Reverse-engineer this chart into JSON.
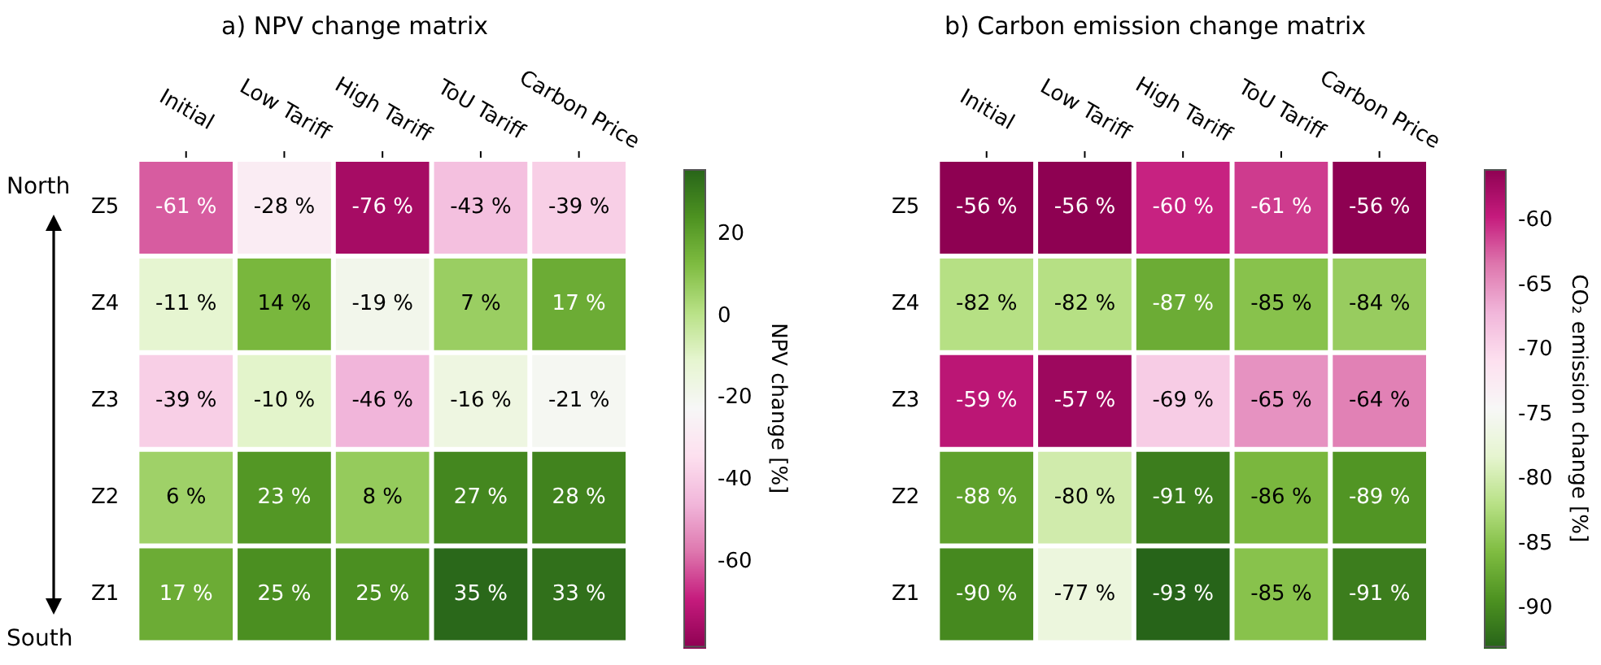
{
  "chart_data": [
    {
      "type": "heatmap",
      "title": "a) NPV change matrix",
      "clabel": "NPV change [%]",
      "categories": [
        "Initial",
        "Low Tariff",
        "High Tariff",
        "ToU Tariff",
        "Carbon Price"
      ],
      "y_categories": [
        "Z5",
        "Z4",
        "Z3",
        "Z2",
        "Z1"
      ],
      "cells": [
        [
          -61,
          -28,
          -76,
          -43,
          -39
        ],
        [
          -11,
          14,
          -19,
          7,
          17
        ],
        [
          -39,
          -10,
          -46,
          -16,
          -21
        ],
        [
          6,
          23,
          8,
          27,
          28
        ],
        [
          17,
          25,
          25,
          35,
          33
        ]
      ],
      "cell_labels": [
        [
          "-61 %",
          "-28 %",
          "-76 %",
          "-43 %",
          "-39 %"
        ],
        [
          "-11 %",
          "14 %",
          "-19 %",
          "7 %",
          "17 %"
        ],
        [
          "-39 %",
          "-10 %",
          "-46 %",
          "-16 %",
          "-21 %"
        ],
        [
          "6 %",
          "23 %",
          "8 %",
          "27 %",
          "28 %"
        ],
        [
          "17 %",
          "25 %",
          "25 %",
          "35 %",
          "33 %"
        ]
      ],
      "colors": [
        "#8e0152",
        "#c51b7d",
        "#de77ae",
        "#f1b6da",
        "#fde0ef",
        "#f7f7f7",
        "#e6f5d0",
        "#b8e186",
        "#7fbc41",
        "#4d9221",
        "#276419"
      ],
      "clim": [
        -81,
        36
      ],
      "cticks": [
        -60,
        -40,
        -20,
        0,
        20
      ],
      "annotations": [
        "North",
        "South"
      ]
    },
    {
      "type": "heatmap",
      "title": "b) Carbon emission change matrix",
      "clabel": "CO₂ emission change [%]",
      "categories": [
        "Initial",
        "Low Tariff",
        "High Tariff",
        "ToU Tariff",
        "Carbon Price"
      ],
      "y_categories": [
        "Z5",
        "Z4",
        "Z3",
        "Z2",
        "Z1"
      ],
      "cells": [
        [
          -56,
          -56,
          -60,
          -61,
          -56
        ],
        [
          -82,
          -82,
          -87,
          -85,
          -84
        ],
        [
          -59,
          -57,
          -69,
          -65,
          -64
        ],
        [
          -88,
          -80,
          -91,
          -86,
          -89
        ],
        [
          -90,
          -77,
          -93,
          -85,
          -91
        ]
      ],
      "cell_labels": [
        [
          "-56 %",
          "-56 %",
          "-60 %",
          "-61 %",
          "-56 %"
        ],
        [
          "-82 %",
          "-82 %",
          "-87 %",
          "-85 %",
          "-84 %"
        ],
        [
          "-59 %",
          "-57 %",
          "-69 %",
          "-65 %",
          "-64 %"
        ],
        [
          "-88 %",
          "-80 %",
          "-91 %",
          "-86 %",
          "-89 %"
        ],
        [
          "-90 %",
          "-77 %",
          "-93 %",
          "-85 %",
          "-91 %"
        ]
      ],
      "colors": [
        "#276419",
        "#4d9221",
        "#7fbc41",
        "#b8e186",
        "#e6f5d0",
        "#f7f7f7",
        "#fde0ef",
        "#f1b6da",
        "#de77ae",
        "#c51b7d",
        "#8e0152"
      ],
      "clim": [
        -93,
        -56
      ],
      "cticks": [
        -90,
        -85,
        -80,
        -75,
        -70,
        -65,
        -60
      ]
    }
  ]
}
